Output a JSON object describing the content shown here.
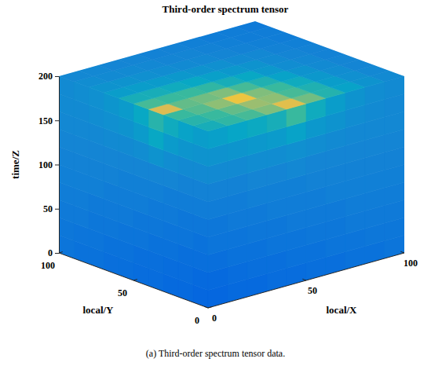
{
  "chart_data": {
    "type": "cube",
    "title": "Third-order spectrum tensor",
    "caption": "(a) Third-order spectrum tensor data.",
    "xlabel": "local/X",
    "ylabel": "local/Y",
    "zlabel": "time/Z",
    "xlim": [
      0,
      100
    ],
    "ylim": [
      0,
      100
    ],
    "zlim": [
      0,
      200
    ],
    "xticks": [
      0,
      50,
      100
    ],
    "yticks": [
      0,
      50,
      100
    ],
    "zticks": [
      0,
      50,
      100,
      150,
      200
    ],
    "clim": [
      0,
      1
    ],
    "cells": {
      "top": [
        [
          0.42,
          0.48,
          0.52,
          0.6,
          0.78,
          0.58,
          0.45,
          0.36,
          0.3,
          0.27
        ],
        [
          0.46,
          0.5,
          0.56,
          0.64,
          0.62,
          0.52,
          0.44,
          0.34,
          0.29,
          0.26
        ],
        [
          0.5,
          0.54,
          0.62,
          0.82,
          0.6,
          0.5,
          0.4,
          0.32,
          0.28,
          0.25
        ],
        [
          0.76,
          0.56,
          0.58,
          0.6,
          0.52,
          0.44,
          0.36,
          0.3,
          0.27,
          0.25
        ],
        [
          0.52,
          0.5,
          0.5,
          0.48,
          0.42,
          0.38,
          0.32,
          0.28,
          0.26,
          0.24
        ],
        [
          0.42,
          0.42,
          0.4,
          0.38,
          0.35,
          0.32,
          0.3,
          0.27,
          0.25,
          0.24
        ],
        [
          0.34,
          0.34,
          0.33,
          0.32,
          0.3,
          0.29,
          0.27,
          0.26,
          0.24,
          0.23
        ],
        [
          0.3,
          0.3,
          0.29,
          0.28,
          0.27,
          0.26,
          0.25,
          0.24,
          0.23,
          0.22
        ],
        [
          0.28,
          0.27,
          0.27,
          0.26,
          0.25,
          0.25,
          0.24,
          0.23,
          0.22,
          0.22
        ],
        [
          0.26,
          0.26,
          0.25,
          0.25,
          0.24,
          0.24,
          0.23,
          0.22,
          0.22,
          0.21
        ]
      ],
      "x0": [
        [
          0.14,
          0.15,
          0.15,
          0.16,
          0.16,
          0.17,
          0.17,
          0.18,
          0.18,
          0.19
        ],
        [
          0.15,
          0.16,
          0.16,
          0.17,
          0.17,
          0.18,
          0.18,
          0.19,
          0.19,
          0.2
        ],
        [
          0.17,
          0.17,
          0.18,
          0.18,
          0.19,
          0.19,
          0.2,
          0.2,
          0.21,
          0.21
        ],
        [
          0.18,
          0.19,
          0.19,
          0.2,
          0.2,
          0.21,
          0.21,
          0.21,
          0.22,
          0.22
        ],
        [
          0.2,
          0.2,
          0.21,
          0.21,
          0.22,
          0.22,
          0.22,
          0.23,
          0.23,
          0.23
        ],
        [
          0.22,
          0.22,
          0.22,
          0.23,
          0.23,
          0.23,
          0.24,
          0.24,
          0.24,
          0.24
        ],
        [
          0.24,
          0.24,
          0.25,
          0.25,
          0.25,
          0.25,
          0.25,
          0.25,
          0.25,
          0.25
        ],
        [
          0.27,
          0.27,
          0.28,
          0.3,
          0.28,
          0.27,
          0.27,
          0.26,
          0.26,
          0.26
        ],
        [
          0.3,
          0.31,
          0.33,
          0.38,
          0.33,
          0.3,
          0.29,
          0.28,
          0.27,
          0.27
        ],
        [
          0.34,
          0.36,
          0.4,
          0.46,
          0.38,
          0.33,
          0.31,
          0.29,
          0.28,
          0.27
        ]
      ],
      "y0": [
        [
          0.14,
          0.15,
          0.15,
          0.16,
          0.16,
          0.17,
          0.17,
          0.18,
          0.18,
          0.19
        ],
        [
          0.15,
          0.16,
          0.17,
          0.17,
          0.18,
          0.18,
          0.19,
          0.19,
          0.2,
          0.2
        ],
        [
          0.17,
          0.18,
          0.18,
          0.19,
          0.19,
          0.2,
          0.2,
          0.21,
          0.21,
          0.21
        ],
        [
          0.19,
          0.19,
          0.2,
          0.2,
          0.21,
          0.21,
          0.21,
          0.22,
          0.22,
          0.22
        ],
        [
          0.2,
          0.21,
          0.21,
          0.22,
          0.22,
          0.22,
          0.23,
          0.23,
          0.23,
          0.23
        ],
        [
          0.22,
          0.22,
          0.23,
          0.23,
          0.23,
          0.24,
          0.24,
          0.24,
          0.24,
          0.24
        ],
        [
          0.24,
          0.24,
          0.25,
          0.25,
          0.26,
          0.25,
          0.25,
          0.25,
          0.25,
          0.25
        ],
        [
          0.27,
          0.27,
          0.28,
          0.28,
          0.29,
          0.28,
          0.27,
          0.26,
          0.26,
          0.26
        ],
        [
          0.3,
          0.31,
          0.32,
          0.33,
          0.36,
          0.32,
          0.3,
          0.28,
          0.27,
          0.26
        ],
        [
          0.35,
          0.37,
          0.39,
          0.42,
          0.5,
          0.4,
          0.34,
          0.3,
          0.28,
          0.27
        ]
      ]
    }
  }
}
